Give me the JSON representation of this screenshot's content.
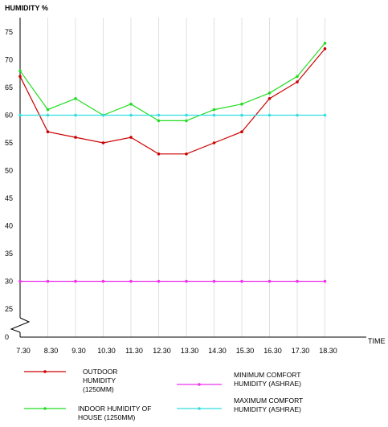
{
  "chart_data": {
    "type": "line",
    "ylabel": "HUMIDITY %",
    "xlabel": "TIME",
    "categories": [
      "7.30",
      "8.30",
      "9.30",
      "10.30",
      "11.30",
      "12.30",
      "13.30",
      "14.30",
      "15.30",
      "16.30",
      "17.30",
      "18.30"
    ],
    "y_ticks": [
      "75",
      "70",
      "65",
      "60",
      "55",
      "50",
      "45",
      "40",
      "35",
      "30",
      "25",
      "0"
    ],
    "axis_break": "between 25 and 0",
    "grid": {
      "vertical": true,
      "horizontal": false,
      "color": "#e0e0e0"
    },
    "legend_placement": "bottom",
    "series": [
      {
        "name": "OUTDOOR HUMIDITY (1250MM)",
        "color": "#cc0000",
        "values": [
          67,
          57,
          56,
          55,
          56,
          53,
          53,
          55,
          57,
          63,
          66,
          72
        ]
      },
      {
        "name": "INDOOR HUMIDITY OF HOUSE (1250MM)",
        "color": "#22dd22",
        "values": [
          68,
          61,
          63,
          60,
          62,
          59,
          59,
          61,
          62,
          64,
          67,
          73
        ]
      },
      {
        "name": "MINIMUM COMFORT HUMIDITY (ASHRAE)",
        "color": "#ee33ee",
        "values": [
          30,
          30,
          30,
          30,
          30,
          30,
          30,
          30,
          30,
          30,
          30,
          30
        ]
      },
      {
        "name": "MAXIMUM COMFORT HUMIDITY (ASHRAE)",
        "color": "#33dddd",
        "values": [
          60,
          60,
          60,
          60,
          60,
          60,
          60,
          60,
          60,
          60,
          60,
          60
        ]
      }
    ],
    "legend": [
      {
        "series": 0,
        "line1": "OUTDOOR",
        "line2": "HUMIDITY",
        "line3": "(1250MM)"
      },
      {
        "series": 2,
        "line1": "MINIMUM COMFORT",
        "line2": "HUMIDITY (ASHRAE)",
        "line3": ""
      },
      {
        "series": 1,
        "line1": "INDOOR HUMIDITY OF",
        "line2": "HOUSE (1250MM)",
        "line3": ""
      },
      {
        "series": 3,
        "line1": "MAXIMUM COMFORT",
        "line2": "HUMIDITY (ASHRAE)",
        "line3": ""
      }
    ]
  }
}
